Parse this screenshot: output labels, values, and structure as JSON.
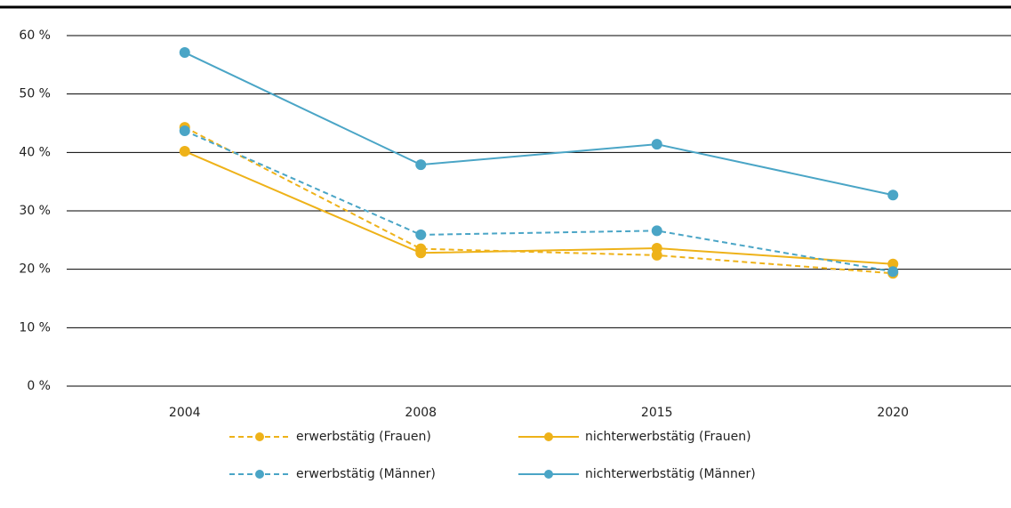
{
  "chart_data": {
    "type": "line",
    "categories": [
      "2004",
      "2008",
      "2015",
      "2020"
    ],
    "series": [
      {
        "name": "erwerbstätig (Frauen)",
        "color": "#eeb219",
        "dashed": true,
        "values": [
          44.3,
          23.5,
          22.4,
          19.3
        ]
      },
      {
        "name": "nichterwerbstätig (Frauen)",
        "color": "#eeb219",
        "dashed": false,
        "values": [
          40.2,
          22.8,
          23.6,
          20.9
        ]
      },
      {
        "name": "erwerbstätig (Männer)",
        "color": "#4aa5c6",
        "dashed": true,
        "values": [
          43.7,
          25.9,
          26.6,
          19.6
        ]
      },
      {
        "name": "nichterwerbstätig (Männer)",
        "color": "#4aa5c6",
        "dashed": false,
        "values": [
          57.1,
          37.9,
          41.4,
          32.7
        ]
      }
    ],
    "ylim": [
      0,
      60
    ],
    "yticks": [
      {
        "value": 0,
        "label": "0 %"
      },
      {
        "value": 10,
        "label": "10 %"
      },
      {
        "value": 20,
        "label": "20 %"
      },
      {
        "value": 30,
        "label": "30 %"
      },
      {
        "value": 40,
        "label": "40 %"
      },
      {
        "value": 50,
        "label": "50 %"
      },
      {
        "value": 60,
        "label": "60 %"
      }
    ],
    "grid": true
  }
}
